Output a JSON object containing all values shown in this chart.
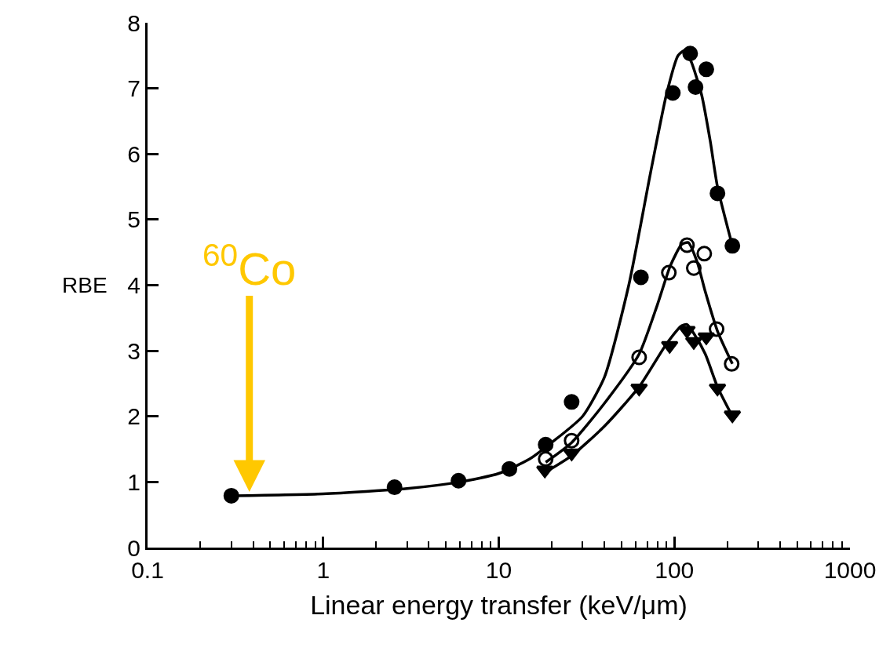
{
  "chart_data": {
    "type": "scatter",
    "xlabel": "Linear energy transfer (keV/μm)",
    "ylabel": "RBE",
    "log": "x",
    "xlim": [
      0.1,
      1000
    ],
    "xticks": [
      0.1,
      1,
      10,
      100,
      1000
    ],
    "ylim": [
      0,
      8
    ],
    "yticks": [
      0,
      1,
      2,
      3,
      4,
      5,
      6,
      7,
      8
    ],
    "annotations": [
      {
        "text": "$^{60}$Co",
        "x": 0.38,
        "y": 0.85
      }
    ],
    "series": [
      {
        "type": "scatter",
        "marker": "circle",
        "color": "#000000",
        "x": [
          0.3,
          2.55,
          5.9,
          11.5,
          18.5,
          26,
          64.5,
          98,
          123,
          132,
          152,
          176,
          214
        ],
        "values": [
          0.79,
          0.92,
          1.02,
          1.2,
          1.57,
          2.22,
          4.12,
          6.93,
          7.53,
          7.02,
          7.29,
          5.4,
          4.6
        ]
      },
      {
        "type": "scatter",
        "marker": "circle-open",
        "color": "#000000",
        "x": [
          18.5,
          26,
          63,
          93,
          118,
          129,
          148,
          174,
          212
        ],
        "values": [
          1.35,
          1.63,
          2.9,
          4.19,
          4.61,
          4.26,
          4.48,
          3.33,
          2.8
        ]
      },
      {
        "type": "scatter",
        "marker": "triangle-down",
        "color": "#000000",
        "x": [
          18.3,
          26,
          63,
          94,
          118,
          129,
          152,
          176,
          214
        ],
        "values": [
          1.18,
          1.44,
          2.43,
          3.08,
          3.31,
          3.14,
          3.21,
          2.43,
          2.02
        ]
      },
      {
        "type": "line",
        "marker": "none",
        "line_style": "solid",
        "color": "#000000",
        "x": [
          0.3,
          1,
          3,
          6,
          10,
          15,
          20,
          30,
          40,
          55,
          73,
          90,
          105,
          115,
          125,
          143,
          160,
          176,
          214
        ],
        "values": [
          0.79,
          0.82,
          0.9,
          1.0,
          1.13,
          1.35,
          1.6,
          2.0,
          2.6,
          4.0,
          5.7,
          6.9,
          7.5,
          7.58,
          7.4,
          6.9,
          6.2,
          5.5,
          4.6
        ]
      },
      {
        "type": "line",
        "marker": "none",
        "line_style": "solid",
        "color": "#000000",
        "x": [
          18.5,
          26,
          40,
          63,
          80,
          95,
          110,
          120,
          135,
          150,
          176,
          214
        ],
        "values": [
          1.3,
          1.6,
          2.2,
          2.95,
          3.7,
          4.3,
          4.62,
          4.65,
          4.35,
          3.9,
          3.3,
          2.8
        ]
      },
      {
        "type": "line",
        "marker": "none",
        "line_style": "solid",
        "color": "#000000",
        "x": [
          18.5,
          26,
          40,
          63,
          90,
          110,
          118,
          130,
          150,
          176,
          214
        ],
        "values": [
          1.15,
          1.4,
          1.85,
          2.45,
          3.1,
          3.38,
          3.4,
          3.25,
          2.95,
          2.45,
          2.0
        ]
      }
    ]
  }
}
